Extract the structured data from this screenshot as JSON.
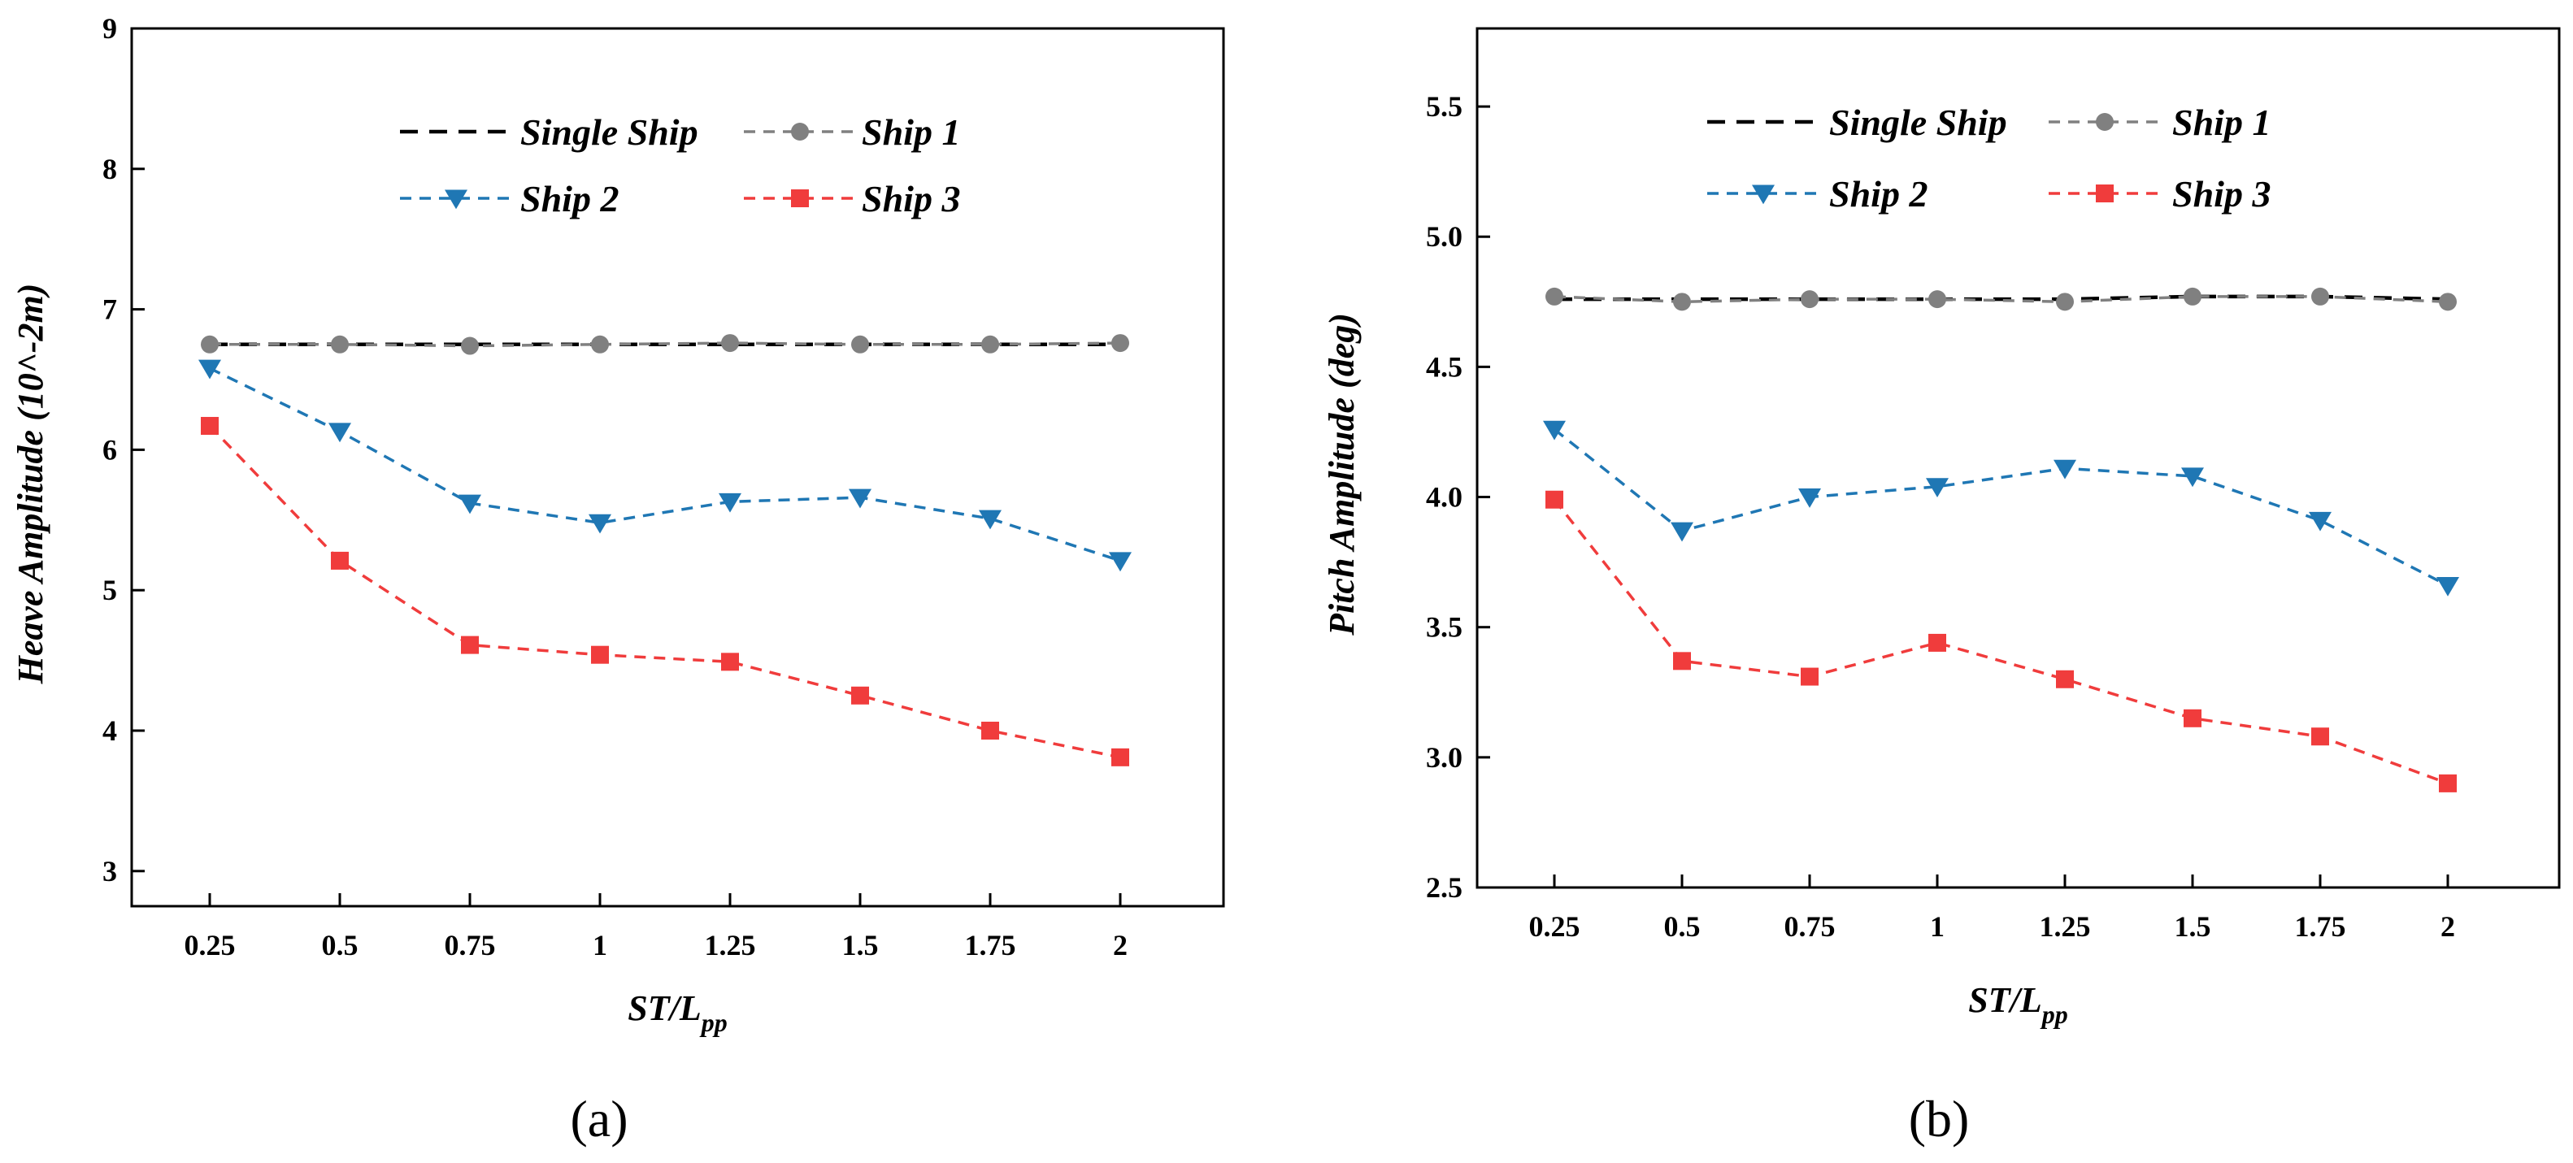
{
  "chart_data": [
    {
      "type": "line",
      "panel_label": "(a)",
      "xlabel": "ST/L",
      "xlabel_sub": "pp",
      "ylabel": "Heave Amplitude (10^-2m)",
      "categories": [
        "0.25",
        "0.5",
        "0.75",
        "1",
        "1.25",
        "1.5",
        "1.75",
        "2"
      ],
      "ylim": [
        2.75,
        9
      ],
      "yticks": [
        "3",
        "4",
        "5",
        "6",
        "7",
        "8",
        "9"
      ],
      "legend_position": "top",
      "series": [
        {
          "name": "Single Ship",
          "color": "#000000",
          "marker": "none",
          "values": [
            6.75,
            6.75,
            6.75,
            6.75,
            6.75,
            6.75,
            6.75,
            6.75
          ]
        },
        {
          "name": "Ship 1",
          "color": "#808080",
          "marker": "circle",
          "values": [
            6.75,
            6.75,
            6.74,
            6.75,
            6.76,
            6.75,
            6.75,
            6.76
          ]
        },
        {
          "name": "Ship 2",
          "color": "#1f77b4",
          "marker": "triangle-down",
          "values": [
            6.58,
            6.13,
            5.62,
            5.48,
            5.63,
            5.66,
            5.51,
            5.21
          ]
        },
        {
          "name": "Ship 3",
          "color": "#f03c3c",
          "marker": "square",
          "values": [
            6.17,
            5.21,
            4.61,
            4.54,
            4.49,
            4.25,
            4.0,
            3.81
          ]
        }
      ]
    },
    {
      "type": "line",
      "panel_label": "(b)",
      "xlabel": "ST/L",
      "xlabel_sub": "pp",
      "ylabel": "Pitch Amplitude (deg)",
      "categories": [
        "0.25",
        "0.5",
        "0.75",
        "1",
        "1.25",
        "1.5",
        "1.75",
        "2"
      ],
      "ylim": [
        2.5,
        5.8
      ],
      "yticks": [
        "2.5",
        "3.0",
        "3.5",
        "4.0",
        "4.5",
        "5.0",
        "5.5"
      ],
      "legend_position": "top",
      "series": [
        {
          "name": "Single Ship",
          "color": "#000000",
          "marker": "none",
          "values": [
            4.76,
            4.76,
            4.76,
            4.76,
            4.76,
            4.77,
            4.77,
            4.76
          ]
        },
        {
          "name": "Ship 1",
          "color": "#808080",
          "marker": "circle",
          "values": [
            4.77,
            4.75,
            4.76,
            4.76,
            4.75,
            4.77,
            4.77,
            4.75
          ]
        },
        {
          "name": "Ship 2",
          "color": "#1f77b4",
          "marker": "triangle-down",
          "values": [
            4.26,
            3.87,
            4.0,
            4.04,
            4.11,
            4.08,
            3.91,
            3.66
          ]
        },
        {
          "name": "Ship 3",
          "color": "#f03c3c",
          "marker": "square",
          "values": [
            3.99,
            3.37,
            3.31,
            3.44,
            3.3,
            3.15,
            3.08,
            2.9
          ]
        }
      ]
    }
  ]
}
